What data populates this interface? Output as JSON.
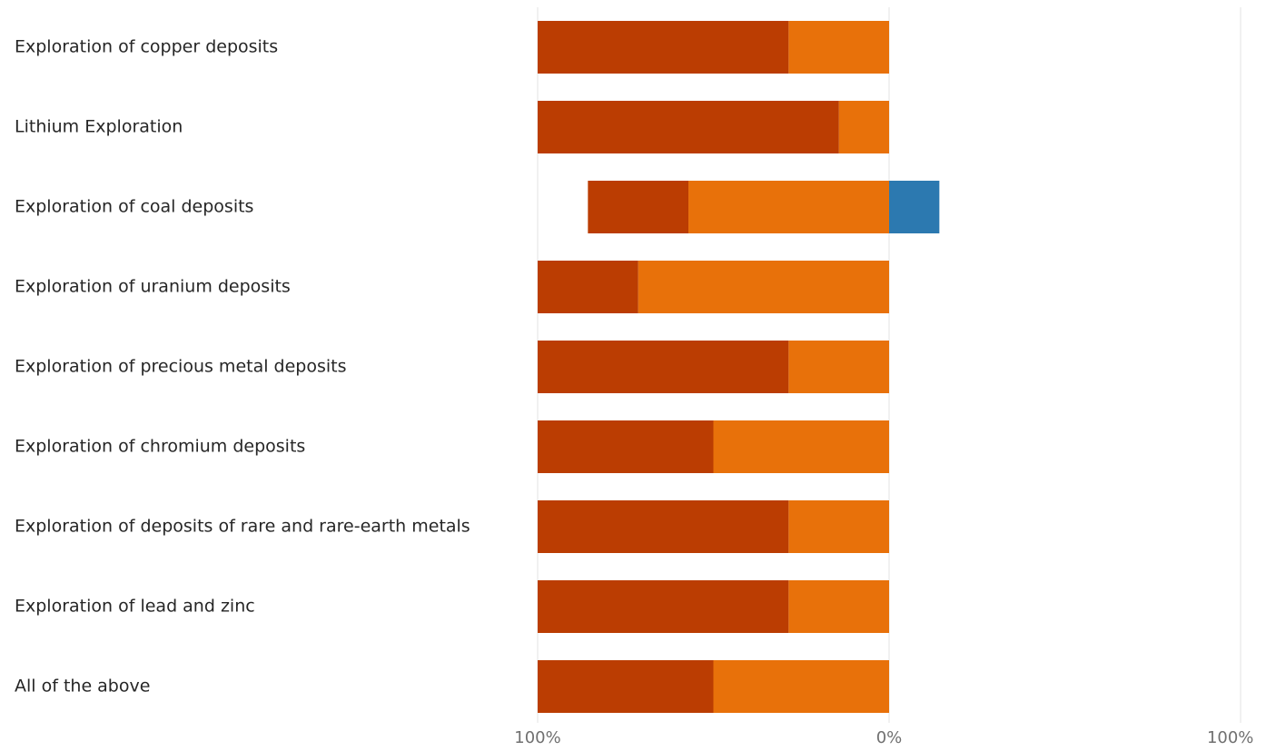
{
  "chart_data": {
    "type": "bar",
    "orientation": "horizontal",
    "stacking": "diverging",
    "categories": [
      "Exploration of copper deposits",
      "Lithium Exploration",
      "Exploration of coal deposits",
      "Exploration of uranium deposits",
      "Exploration of precious metal deposits",
      "Exploration of chromium deposits",
      "Exploration of deposits of rare and rare-earth metals",
      "Exploration of lead and zinc",
      "All of the above"
    ],
    "series": [
      {
        "side": "negative",
        "color": "#e8710a",
        "values": [
          -28.6,
          -14.3,
          -57.1,
          -71.4,
          -28.6,
          -50,
          -28.6,
          -28.6,
          -50
        ]
      },
      {
        "side": "negative",
        "color": "#bb3d02",
        "values": [
          -71.4,
          -85.7,
          -28.6,
          -28.6,
          -71.4,
          -50,
          -71.4,
          -71.4,
          -50
        ]
      },
      {
        "side": "positive",
        "color": "#2c79b0",
        "values": [
          0,
          0,
          14.3,
          0,
          0,
          0,
          0,
          0,
          0
        ]
      }
    ],
    "xlim": [
      -100,
      100
    ],
    "xticks": [
      "100%",
      "0%",
      "100%"
    ],
    "grid": true,
    "legend": "none"
  }
}
